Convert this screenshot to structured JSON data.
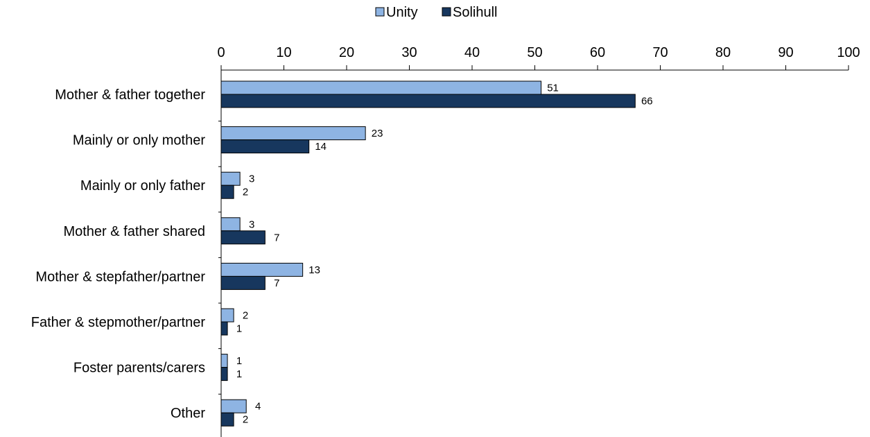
{
  "chart_data": {
    "type": "bar",
    "orientation": "horizontal",
    "categories": [
      "Mother & father together",
      "Mainly or only mother",
      "Mainly or only father",
      "Mother & father shared",
      "Mother & stepfather/partner",
      "Father & stepmother/partner",
      "Foster parents/carers",
      "Other"
    ],
    "series": [
      {
        "name": "Unity",
        "color": "#8EB4E3",
        "values": [
          51,
          23,
          3,
          3,
          13,
          2,
          1,
          4
        ]
      },
      {
        "name": "Solihull",
        "color": "#17375E",
        "values": [
          66,
          14,
          2,
          7,
          7,
          1,
          1,
          2
        ]
      }
    ],
    "xlim": [
      0,
      100
    ],
    "xticks": [
      "0",
      "10",
      "20",
      "30",
      "40",
      "50",
      "60",
      "70",
      "80",
      "90",
      "100"
    ],
    "x_axis_position": "top",
    "legend_position": "top-center",
    "grid": false,
    "title": "",
    "xlabel": "",
    "ylabel": ""
  }
}
